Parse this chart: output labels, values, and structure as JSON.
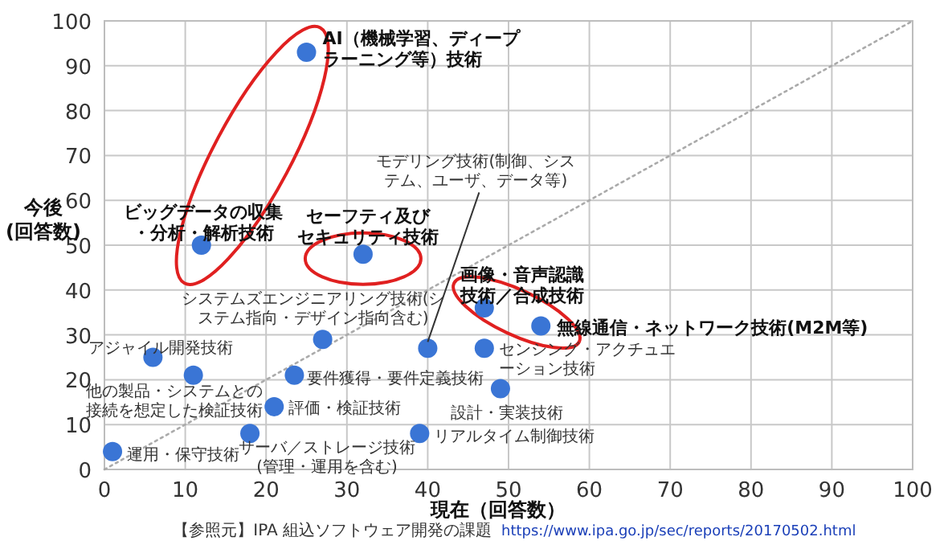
{
  "chart_data": {
    "type": "scatter",
    "xlabel": "現在（回答数）",
    "ylabel": "今後\n(回答数)",
    "xlim": [
      0,
      100
    ],
    "ylim": [
      0,
      100
    ],
    "xticks": [
      0,
      10,
      20,
      30,
      40,
      50,
      60,
      70,
      80,
      90,
      100
    ],
    "yticks": [
      0,
      10,
      20,
      30,
      40,
      50,
      60,
      70,
      80,
      90,
      100
    ],
    "grid": true,
    "series": [
      {
        "type": "line",
        "color": "#aaaaaa",
        "line_style": "dotted",
        "marker": "none",
        "x": [
          0,
          100
        ],
        "values": [
          0,
          100
        ]
      },
      {
        "color": "#3a75d5",
        "marker": "circle",
        "x": [
          25,
          12,
          32,
          40,
          27,
          6,
          11,
          23.5,
          21,
          18,
          1,
          39,
          47,
          54,
          47,
          49
        ],
        "values": [
          93,
          50,
          48,
          27,
          29,
          25,
          21,
          21,
          14,
          8,
          4,
          8,
          36,
          32,
          27,
          18
        ]
      }
    ],
    "annotations": [
      {
        "text": "AI（機械学習、ディープラーニング等）技術",
        "x": 25,
        "y": 93
      },
      {
        "text": "ビッグデータの収集・分析・解析技術",
        "x": 12,
        "y": 50
      },
      {
        "text": "セーフティ及びセキュリティ技術",
        "x": 32,
        "y": 48
      },
      {
        "text": "モデリング技術(制御、システム、ユーザ、データ等)",
        "x": 40,
        "y": 27
      },
      {
        "text": "システムズエンジニアリング技術(システム指向・デザイン指向含む)",
        "x": 27,
        "y": 29
      },
      {
        "text": "アジャイル開発技術",
        "x": 6,
        "y": 25
      },
      {
        "text": "他の製品・システムとの接続を想定した検証技術",
        "x": 11,
        "y": 21
      },
      {
        "text": "要件獲得・要件定義技術",
        "x": 23.5,
        "y": 21
      },
      {
        "text": "評価・検証技術",
        "x": 21,
        "y": 14
      },
      {
        "text": "サーバ／ストレージ技術(管理・運用を含む)",
        "x": 18,
        "y": 8
      },
      {
        "text": "運用・保守技術",
        "x": 1,
        "y": 4
      },
      {
        "text": "リアルタイム制御技術",
        "x": 39,
        "y": 8
      },
      {
        "text": "画像・音声認識技術／合成技術",
        "x": 47,
        "y": 36
      },
      {
        "text": "無線通信・ネットワーク技術(M2M等)",
        "x": 54,
        "y": 32
      },
      {
        "text": "センシング・アクチュエーション技術",
        "x": 47,
        "y": 27
      },
      {
        "text": "設計・実装技術",
        "x": 49,
        "y": 18
      },
      "【参照元】IPA 組込ソフトウェア開発の課題",
      "https://www.ipa.go.jp/sec/reports/20170502.html"
    ]
  }
}
